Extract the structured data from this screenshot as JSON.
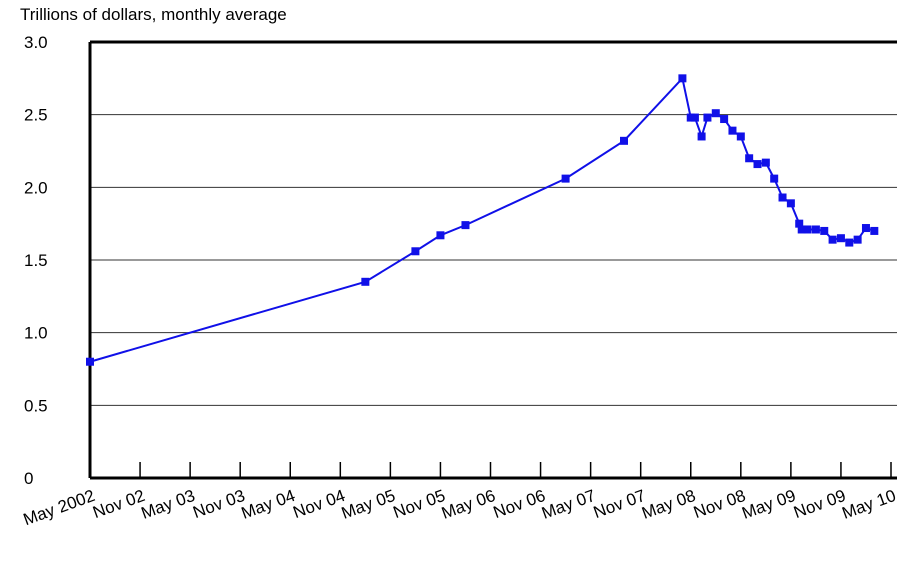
{
  "chart_data": {
    "type": "line",
    "title": "Trillions of dollars, monthly average",
    "x": [
      0,
      33,
      39,
      42,
      45,
      57,
      64,
      71,
      72,
      72.5,
      73.3,
      74,
      75,
      76,
      77,
      78,
      79,
      80,
      81,
      82,
      83,
      84,
      85,
      85.3,
      86,
      87,
      88,
      89,
      90,
      91,
      92,
      93,
      94
    ],
    "series": [
      {
        "name": "Trillions of dollars",
        "color": "#1010e8",
        "values": [
          0.8,
          1.35,
          1.56,
          1.67,
          1.74,
          2.06,
          2.32,
          2.75,
          2.48,
          2.48,
          2.35,
          2.48,
          2.51,
          2.47,
          2.39,
          2.35,
          2.2,
          2.16,
          2.17,
          2.06,
          1.93,
          1.89,
          1.75,
          1.71,
          1.71,
          1.71,
          1.7,
          1.64,
          1.65,
          1.62,
          1.64,
          1.72,
          1.7
        ]
      }
    ],
    "xlim": [
      0,
      96
    ],
    "xticks": [
      {
        "value": 0,
        "label": "May 2002"
      },
      {
        "value": 6,
        "label": "Nov 02"
      },
      {
        "value": 12,
        "label": "May 03"
      },
      {
        "value": 18,
        "label": "Nov 03"
      },
      {
        "value": 24,
        "label": "May 04"
      },
      {
        "value": 30,
        "label": "Nov 04"
      },
      {
        "value": 36,
        "label": "May 05"
      },
      {
        "value": 42,
        "label": "Nov 05"
      },
      {
        "value": 48,
        "label": "May 06"
      },
      {
        "value": 54,
        "label": "Nov 06"
      },
      {
        "value": 60,
        "label": "May 07"
      },
      {
        "value": 66,
        "label": "Nov 07"
      },
      {
        "value": 72,
        "label": "May 08"
      },
      {
        "value": 78,
        "label": "Nov 08"
      },
      {
        "value": 84,
        "label": "May 09"
      },
      {
        "value": 90,
        "label": "Nov 09"
      },
      {
        "value": 96,
        "label": "May 10"
      }
    ],
    "ylim": [
      0,
      3
    ],
    "yticks": [
      0,
      0.5,
      {
        "value": 1,
        "label": "1.0"
      },
      1.5,
      {
        "value": 2,
        "label": "2.0"
      },
      2.5,
      {
        "value": 3,
        "label": "3.0"
      }
    ],
    "grid": true
  }
}
